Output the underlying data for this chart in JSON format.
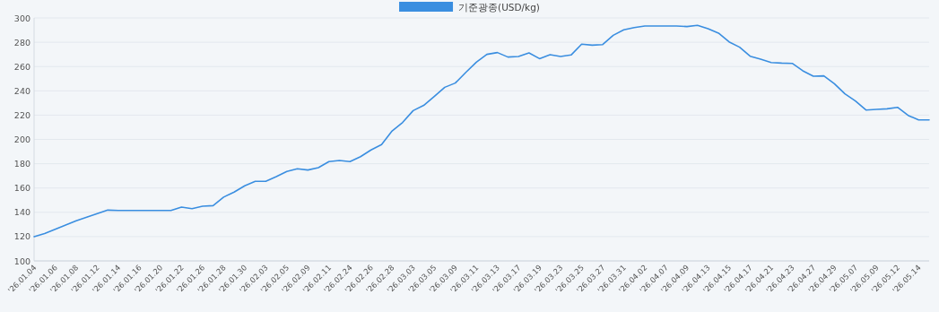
{
  "chart_data": {
    "type": "line",
    "categories": [
      "'26.01.04",
      null,
      "'26.01.06",
      null,
      "'26.01.08",
      null,
      "'26.01.12",
      null,
      "'26.01.14",
      null,
      "'26.01.16",
      null,
      "'26.01.20",
      null,
      "'26.01.22",
      null,
      "'26.01.26",
      null,
      "'26.01.28",
      null,
      "'26.01.30",
      null,
      "'26.02.03",
      null,
      "'26.02.05",
      null,
      "'26.02.09",
      null,
      "'26.02.11",
      null,
      "'26.02.24",
      null,
      "'26.02.26",
      null,
      "'26.02.28",
      null,
      "'26.03.03",
      null,
      "'26.03.05",
      null,
      "'26.03.09",
      null,
      "'26.03.11",
      null,
      "'26.03.13",
      null,
      "'26.03.17",
      null,
      "'26.03.19",
      null,
      "'26.03.23",
      null,
      "'26.03.25",
      null,
      "'26.03.27",
      null,
      "'26.03.31",
      null,
      "'26.04.02",
      null,
      "'26.04.07",
      null,
      "'26.04.09",
      null,
      "'26.04.13",
      null,
      "'26.04.15",
      null,
      "'26.04.17",
      null,
      "'26.04.21",
      null,
      "'26.04.23",
      null,
      "'26.04.27",
      null,
      "'26.04.29",
      null,
      "'26.05.07",
      null,
      "'26.05.09",
      null,
      "'26.05.12",
      null,
      "'26.05.14",
      null
    ],
    "series": [
      {
        "name": "기준광종(USD/kg)",
        "color": "#3a8ee0",
        "values": [
          120,
          122.5,
          126,
          129.5,
          133,
          136,
          139,
          141.8,
          141.5,
          141.5,
          141.5,
          141.5,
          141.5,
          141.5,
          144.3,
          143,
          145,
          145.5,
          152.5,
          156.6,
          161.8,
          165.5,
          165.5,
          169.4,
          173.6,
          175.8,
          174.8,
          176.8,
          181.7,
          182.7,
          181.7,
          185.8,
          191.3,
          195.7,
          207,
          214,
          223.7,
          228,
          235.3,
          242.9,
          246.4,
          255.2,
          263.6,
          270,
          271.5,
          267.8,
          268.3,
          271.2,
          266.5,
          269.7,
          268.3,
          269.5,
          278.4,
          277.6,
          278.1,
          285.7,
          290.2,
          292.1,
          293.4,
          293.4,
          293.4,
          293.4,
          292.9,
          293.9,
          291.1,
          287.5,
          280.3,
          275.9,
          268.5,
          266,
          263.3,
          262.8,
          262.6,
          256.5,
          252,
          252.3,
          245.9,
          237.5,
          231.6,
          224.2,
          224.7,
          225.2,
          226.4,
          219.8,
          216.1,
          216.1
        ]
      }
    ],
    "ylim": [
      100,
      300
    ],
    "yticks": [
      100,
      120,
      140,
      160,
      180,
      200,
      220,
      240,
      260,
      280,
      300
    ],
    "grid": "y",
    "legend": "top",
    "marker": "none",
    "line_style": "solid"
  }
}
